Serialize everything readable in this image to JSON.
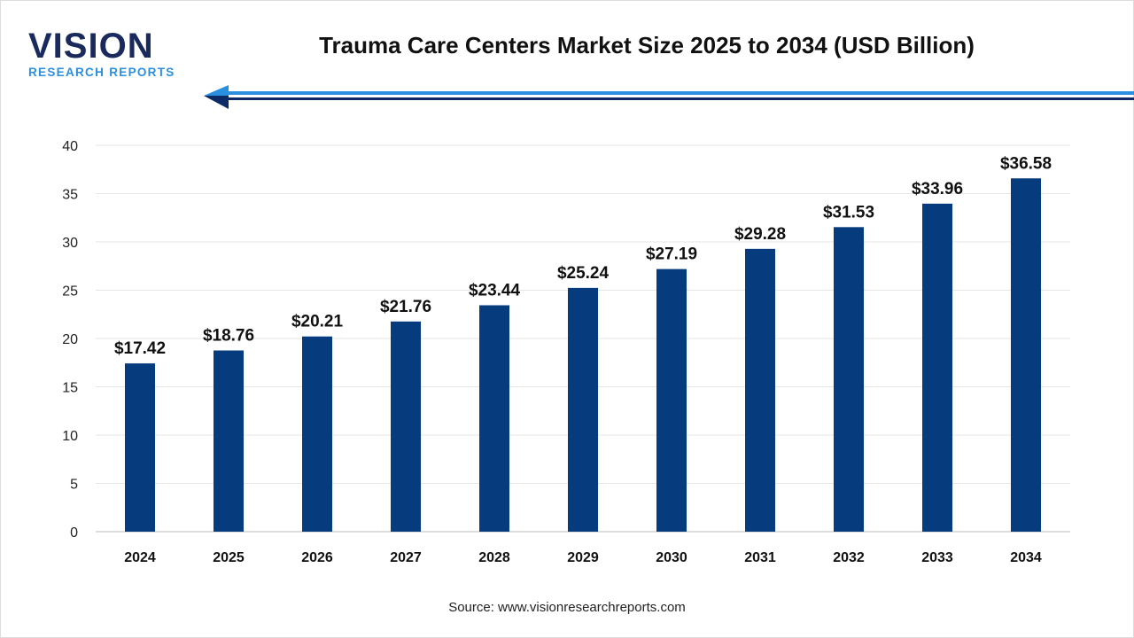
{
  "logo": {
    "main": "VISION",
    "sub": "RESEARCH REPORTS"
  },
  "source": "Source: www.visionresearchreports.com",
  "colors": {
    "bar": "#063c7d",
    "logo_dark": "#1a2a5c",
    "logo_accent": "#2b8fe0",
    "arrow_dark": "#0b2a66",
    "arrow_light": "#2b8fe0"
  },
  "chart_data": {
    "type": "bar",
    "title": "Trauma Care Centers Market Size 2025 to 2034 (USD Billion)",
    "categories": [
      "2024",
      "2025",
      "2026",
      "2027",
      "2028",
      "2029",
      "2030",
      "2031",
      "2032",
      "2033",
      "2034"
    ],
    "values": [
      17.42,
      18.76,
      20.21,
      21.76,
      23.44,
      25.24,
      27.19,
      29.28,
      31.53,
      33.96,
      36.58
    ],
    "data_labels": [
      "$17.42",
      "$18.76",
      "$20.21",
      "$21.76",
      "$23.44",
      "$25.24",
      "$27.19",
      "$29.28",
      "$31.53",
      "$33.96",
      "$36.58"
    ],
    "yticks": [
      0,
      5,
      10,
      15,
      20,
      25,
      30,
      35,
      40
    ],
    "ylim": [
      0,
      40
    ],
    "xlabel": "",
    "ylabel": "",
    "grid": true,
    "legend": "none"
  }
}
